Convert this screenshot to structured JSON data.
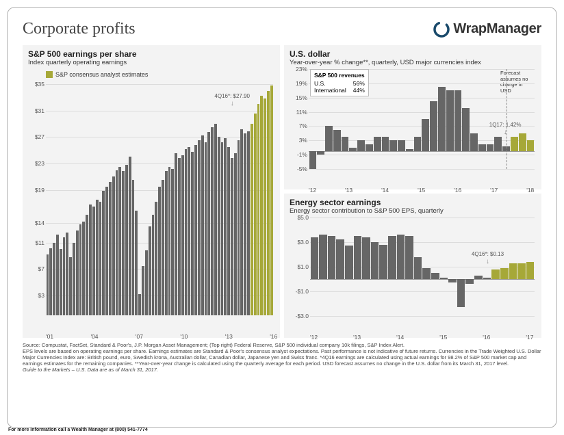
{
  "page_title": "Corporate profits",
  "logo_text": "WrapManager",
  "contact_text": "For more information call a Wealth Manager at (800) 541-7774",
  "colors": {
    "bar_gray": "#666666",
    "bar_olive": "#a6a838",
    "grid": "#dcdcdc",
    "panel_bg": "#f3f3f3",
    "text": "#333333",
    "logo_ring": "#1a4a6b"
  },
  "eps_chart": {
    "title": "S&P 500 earnings per share",
    "subtitle": "Index quarterly operating earnings",
    "legend": "S&P consensus analyst estimates",
    "callout": {
      "label": "4Q16*: $27.90"
    },
    "ylim": [
      0,
      35
    ],
    "yticks": [
      "$35",
      "$31",
      "$27",
      "$23",
      "$19",
      "$14",
      "$11",
      "$7",
      "$3"
    ],
    "ytick_values": [
      35,
      31,
      27,
      23,
      19,
      14,
      11,
      7,
      3
    ],
    "xticks": [
      "'01",
      "'04",
      "'07",
      "'10",
      "'13",
      "'16"
    ],
    "bars": [
      {
        "v": 9.2,
        "c": "g"
      },
      {
        "v": 10.1,
        "c": "g"
      },
      {
        "v": 11.0,
        "c": "g"
      },
      {
        "v": 12.2,
        "c": "g"
      },
      {
        "v": 10.0,
        "c": "g"
      },
      {
        "v": 11.8,
        "c": "g"
      },
      {
        "v": 12.5,
        "c": "g"
      },
      {
        "v": 8.8,
        "c": "g"
      },
      {
        "v": 11.0,
        "c": "g"
      },
      {
        "v": 12.8,
        "c": "g"
      },
      {
        "v": 13.8,
        "c": "g"
      },
      {
        "v": 14.2,
        "c": "g"
      },
      {
        "v": 15.2,
        "c": "g"
      },
      {
        "v": 16.8,
        "c": "g"
      },
      {
        "v": 16.5,
        "c": "g"
      },
      {
        "v": 17.5,
        "c": "g"
      },
      {
        "v": 17.2,
        "c": "g"
      },
      {
        "v": 18.8,
        "c": "g"
      },
      {
        "v": 19.5,
        "c": "g"
      },
      {
        "v": 20.2,
        "c": "g"
      },
      {
        "v": 21.0,
        "c": "g"
      },
      {
        "v": 22.0,
        "c": "g"
      },
      {
        "v": 22.5,
        "c": "g"
      },
      {
        "v": 21.8,
        "c": "g"
      },
      {
        "v": 22.8,
        "c": "g"
      },
      {
        "v": 24.0,
        "c": "g"
      },
      {
        "v": 20.5,
        "c": "g"
      },
      {
        "v": 15.8,
        "c": "g"
      },
      {
        "v": 3.2,
        "c": "g"
      },
      {
        "v": 7.5,
        "c": "g"
      },
      {
        "v": 9.8,
        "c": "g"
      },
      {
        "v": 13.5,
        "c": "g"
      },
      {
        "v": 15.2,
        "c": "g"
      },
      {
        "v": 17.2,
        "c": "g"
      },
      {
        "v": 19.5,
        "c": "g"
      },
      {
        "v": 20.5,
        "c": "g"
      },
      {
        "v": 21.8,
        "c": "g"
      },
      {
        "v": 22.5,
        "c": "g"
      },
      {
        "v": 22.2,
        "c": "g"
      },
      {
        "v": 24.5,
        "c": "g"
      },
      {
        "v": 23.8,
        "c": "g"
      },
      {
        "v": 24.2,
        "c": "g"
      },
      {
        "v": 25.2,
        "c": "g"
      },
      {
        "v": 25.5,
        "c": "g"
      },
      {
        "v": 24.8,
        "c": "g"
      },
      {
        "v": 25.8,
        "c": "g"
      },
      {
        "v": 26.5,
        "c": "g"
      },
      {
        "v": 27.2,
        "c": "g"
      },
      {
        "v": 26.2,
        "c": "g"
      },
      {
        "v": 27.8,
        "c": "g"
      },
      {
        "v": 28.5,
        "c": "g"
      },
      {
        "v": 29.0,
        "c": "g"
      },
      {
        "v": 27.0,
        "c": "g"
      },
      {
        "v": 26.2,
        "c": "g"
      },
      {
        "v": 26.8,
        "c": "g"
      },
      {
        "v": 25.5,
        "c": "g"
      },
      {
        "v": 23.8,
        "c": "g"
      },
      {
        "v": 24.5,
        "c": "g"
      },
      {
        "v": 26.5,
        "c": "g"
      },
      {
        "v": 28.2,
        "c": "g"
      },
      {
        "v": 27.5,
        "c": "g"
      },
      {
        "v": 27.9,
        "c": "g"
      },
      {
        "v": 29.0,
        "c": "o"
      },
      {
        "v": 30.5,
        "c": "o"
      },
      {
        "v": 32.0,
        "c": "o"
      },
      {
        "v": 33.2,
        "c": "o"
      },
      {
        "v": 32.8,
        "c": "o"
      },
      {
        "v": 34.0,
        "c": "o"
      },
      {
        "v": 34.8,
        "c": "o"
      }
    ]
  },
  "usd_chart": {
    "title": "U.S. dollar",
    "subtitle": "Year-over-year % change**, quarterly, USD major currencies index",
    "revenue_table": {
      "header": "S&P 500 revenues",
      "rows": [
        [
          "U.S.",
          "56%"
        ],
        [
          "International",
          "44%"
        ]
      ]
    },
    "forecast_note": "Forecast assumes no change in USD",
    "callout": {
      "label": "1Q17: 1.42%"
    },
    "ylim": [
      -5,
      23
    ],
    "yticks": [
      "23%",
      "19%",
      "15%",
      "11%",
      "7%",
      "3%",
      "-1%",
      "-5%"
    ],
    "ytick_values": [
      23,
      19,
      15,
      11,
      7,
      3,
      -1,
      -5
    ],
    "xticks": [
      "'12",
      "'13",
      "'14",
      "'15",
      "'16",
      "'17",
      "'18"
    ],
    "xticks_span": 28,
    "bars": [
      {
        "v": -5,
        "c": "g"
      },
      {
        "v": -1,
        "c": "g"
      },
      {
        "v": 7,
        "c": "g"
      },
      {
        "v": 6,
        "c": "g"
      },
      {
        "v": 4,
        "c": "g"
      },
      {
        "v": 1,
        "c": "g"
      },
      {
        "v": 3,
        "c": "g"
      },
      {
        "v": 2,
        "c": "g"
      },
      {
        "v": 4,
        "c": "g"
      },
      {
        "v": 4,
        "c": "g"
      },
      {
        "v": 3,
        "c": "g"
      },
      {
        "v": 3,
        "c": "g"
      },
      {
        "v": 0.5,
        "c": "g"
      },
      {
        "v": 4,
        "c": "g"
      },
      {
        "v": 9,
        "c": "g"
      },
      {
        "v": 14,
        "c": "g"
      },
      {
        "v": 18,
        "c": "g"
      },
      {
        "v": 17,
        "c": "g"
      },
      {
        "v": 17,
        "c": "g"
      },
      {
        "v": 12,
        "c": "g"
      },
      {
        "v": 5,
        "c": "g"
      },
      {
        "v": 2,
        "c": "g"
      },
      {
        "v": 2,
        "c": "g"
      },
      {
        "v": 4,
        "c": "g"
      },
      {
        "v": 1.42,
        "c": "g"
      },
      {
        "v": 4,
        "c": "o"
      },
      {
        "v": 5,
        "c": "o"
      },
      {
        "v": 3,
        "c": "o"
      }
    ],
    "vdash_after_index": 24
  },
  "energy_chart": {
    "title": "Energy sector earnings",
    "subtitle": "Energy sector contribution to S&P 500 EPS, quarterly",
    "callout": {
      "label": "4Q16*: $0.13"
    },
    "ylim": [
      -3,
      5
    ],
    "yticks": [
      "$5.0",
      "$3.0",
      "$1.0",
      "-$1.0",
      "-$3.0"
    ],
    "ytick_values": [
      5.0,
      3.0,
      1.0,
      -1.0,
      -3.0
    ],
    "xticks": [
      "'12",
      "'13",
      "'14",
      "'15",
      "'16",
      "'17"
    ],
    "xticks_span": 26,
    "bars": [
      {
        "v": 3.4,
        "c": "g"
      },
      {
        "v": 3.6,
        "c": "g"
      },
      {
        "v": 3.5,
        "c": "g"
      },
      {
        "v": 3.2,
        "c": "g"
      },
      {
        "v": 2.7,
        "c": "g"
      },
      {
        "v": 3.5,
        "c": "g"
      },
      {
        "v": 3.4,
        "c": "g"
      },
      {
        "v": 3.0,
        "c": "g"
      },
      {
        "v": 2.8,
        "c": "g"
      },
      {
        "v": 3.5,
        "c": "g"
      },
      {
        "v": 3.6,
        "c": "g"
      },
      {
        "v": 3.5,
        "c": "g"
      },
      {
        "v": 1.8,
        "c": "g"
      },
      {
        "v": 0.9,
        "c": "g"
      },
      {
        "v": 0.5,
        "c": "g"
      },
      {
        "v": 0.1,
        "c": "g"
      },
      {
        "v": -0.3,
        "c": "g"
      },
      {
        "v": -2.3,
        "c": "g"
      },
      {
        "v": -0.4,
        "c": "g"
      },
      {
        "v": 0.3,
        "c": "g"
      },
      {
        "v": 0.13,
        "c": "g"
      },
      {
        "v": 0.8,
        "c": "o"
      },
      {
        "v": 0.9,
        "c": "o"
      },
      {
        "v": 1.3,
        "c": "o"
      },
      {
        "v": 1.3,
        "c": "o"
      },
      {
        "v": 1.4,
        "c": "o"
      }
    ]
  },
  "source_lines": [
    "Source: Compustat, FactSet, Standard & Poor's, J.P. Morgan Asset Management; (Top right) Federal Reserve, S&P 500 individual company 10k filings, S&P Index Alert.",
    "EPS levels are based on operating earnings per share. Earnings estimates are Standard & Poor's consensus analyst expectations. Past performance is not indicative of future returns. Currencies in the Trade Weighted U.S. Dollar Major Currencies Index are: British pound, euro, Swedish krona, Australian dollar, Canadian dollar, Japanese yen and Swiss franc. *4Q16 earnings are calculated using actual earnings for 98.2% of S&P 500 market cap and earnings estimates for the remaining companies. **Year-over-year change is calculated using the quarterly average for each period. USD forecast assumes no change in the U.S. dollar from its March 31, 2017 level.",
    "Guide to the Markets – U.S. Data are as of March 31, 2017."
  ]
}
